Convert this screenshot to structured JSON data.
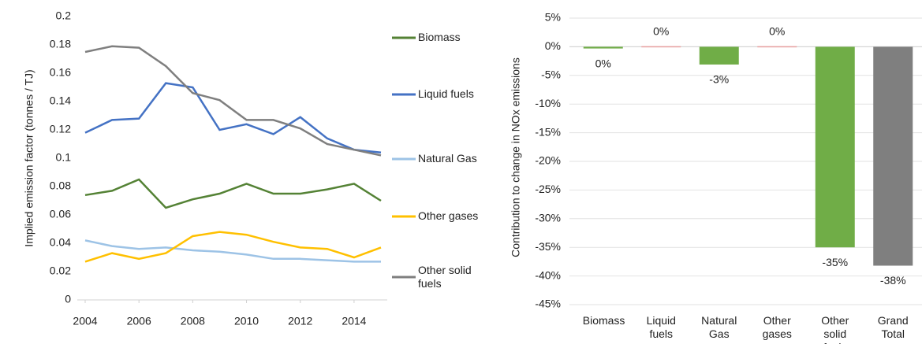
{
  "chart_data": [
    {
      "type": "line",
      "y_label": "Implied emission factor (tonnes / TJ)",
      "x": [
        2004,
        2005,
        2006,
        2007,
        2008,
        2009,
        2010,
        2011,
        2012,
        2013,
        2014,
        2015
      ],
      "xlim": [
        2004,
        2015
      ],
      "xticks": [
        2004,
        2006,
        2008,
        2010,
        2012,
        2014
      ],
      "ylim": [
        0,
        0.2
      ],
      "yticks": [
        0,
        0.02,
        0.04,
        0.06,
        0.08,
        0.1,
        0.12,
        0.14,
        0.16,
        0.18,
        0.2
      ],
      "legend": "right",
      "series": [
        {
          "name": "Biomass",
          "color": "#548235",
          "values": [
            0.074,
            0.077,
            0.085,
            0.065,
            0.071,
            0.075,
            0.082,
            0.075,
            0.075,
            0.078,
            0.082,
            0.07
          ]
        },
        {
          "name": "Liquid fuels",
          "color": "#4472c4",
          "values": [
            0.118,
            0.127,
            0.128,
            0.153,
            0.15,
            0.12,
            0.124,
            0.117,
            0.129,
            0.114,
            0.106,
            0.104
          ]
        },
        {
          "name": "Natural Gas",
          "color": "#9dc3e6",
          "values": [
            0.042,
            0.038,
            0.036,
            0.037,
            0.035,
            0.034,
            0.032,
            0.029,
            0.029,
            0.028,
            0.027,
            0.027
          ]
        },
        {
          "name": "Other gases",
          "color": "#ffc000",
          "values": [
            0.027,
            0.033,
            0.029,
            0.033,
            0.045,
            0.048,
            0.046,
            0.041,
            0.037,
            0.036,
            0.03,
            0.037
          ]
        },
        {
          "name": "Other solid fuels",
          "color": "#7f7f7f",
          "values": [
            0.175,
            0.179,
            0.178,
            0.165,
            0.146,
            0.141,
            0.127,
            0.127,
            0.121,
            0.11,
            0.106,
            0.102
          ]
        }
      ]
    },
    {
      "type": "bar",
      "y_label": "Contribution to change in NOx emissions",
      "categories": [
        "Biomass",
        "Liquid fuels",
        "Natural Gas",
        "Other gases",
        "Other solid fuels",
        "Grand Total"
      ],
      "values": [
        -0.3,
        0.1,
        -3.1,
        0.1,
        -35,
        -38.2
      ],
      "value_labels": [
        "0%",
        "0%",
        "-3%",
        "0%",
        "-35%",
        "-38%"
      ],
      "colors": [
        "#70ad47",
        "#e8a0a0",
        "#70ad47",
        "#e8a0a0",
        "#70ad47",
        "#7f7f7f"
      ],
      "ylim": [
        -45,
        5
      ],
      "grid": true,
      "yticks": [
        {
          "value": -45,
          "label": "-45%"
        },
        {
          "value": -40,
          "label": "-40%"
        },
        {
          "value": -35,
          "label": "-35%"
        },
        {
          "value": -30,
          "label": "-30%"
        },
        {
          "value": -25,
          "label": "-25%"
        },
        {
          "value": -20,
          "label": "-20%"
        },
        {
          "value": -15,
          "label": "-15%"
        },
        {
          "value": -10,
          "label": "-10%"
        },
        {
          "value": -5,
          "label": "-5%"
        },
        {
          "value": 0,
          "label": "0%"
        },
        {
          "value": 5,
          "label": "5%"
        }
      ]
    }
  ]
}
